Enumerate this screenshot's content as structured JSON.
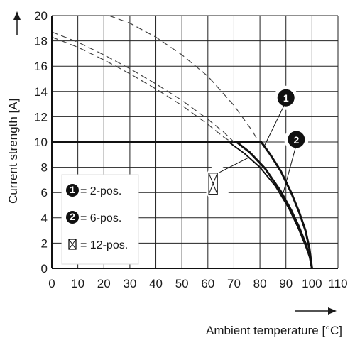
{
  "chart_data": {
    "type": "line",
    "xlabel": "Ambient temperature [°C]",
    "ylabel": "Current strength [A]",
    "xlim": [
      0,
      110
    ],
    "ylim": [
      0,
      20
    ],
    "xticks": [
      0,
      10,
      20,
      30,
      40,
      50,
      60,
      70,
      80,
      90,
      100,
      110
    ],
    "yticks": [
      0,
      2,
      4,
      6,
      8,
      10,
      12,
      14,
      16,
      18,
      20
    ],
    "grid": true,
    "series": [
      {
        "marker": "1",
        "style": "solid-bold",
        "points": [
          [
            0,
            10
          ],
          [
            80.5,
            10
          ],
          [
            84,
            9.0
          ],
          [
            88,
            7.7
          ],
          [
            92,
            6.0
          ],
          [
            95,
            4.5
          ],
          [
            97.5,
            3.0
          ],
          [
            99,
            1.6
          ],
          [
            100,
            0
          ]
        ]
      },
      {
        "marker": "2",
        "style": "solid-bold",
        "points": [
          [
            0,
            10
          ],
          [
            71,
            10
          ],
          [
            76,
            9.2
          ],
          [
            82,
            7.9
          ],
          [
            88,
            6.1
          ],
          [
            92,
            4.6
          ],
          [
            95,
            3.3
          ],
          [
            97.5,
            2.0
          ],
          [
            99.2,
            0.9
          ],
          [
            100,
            0
          ]
        ]
      },
      {
        "marker": "12",
        "style": "solid",
        "points": [
          [
            0,
            10
          ],
          [
            68,
            10
          ],
          [
            74,
            9.1
          ],
          [
            80,
            8.0
          ],
          [
            86,
            6.5
          ],
          [
            91,
            4.8
          ],
          [
            94.5,
            3.3
          ],
          [
            97.5,
            1.8
          ],
          [
            99.3,
            0.8
          ],
          [
            100,
            0
          ]
        ]
      },
      {
        "style": "dashed",
        "points": [
          [
            22,
            20
          ],
          [
            30,
            19.4
          ],
          [
            40,
            18.3
          ],
          [
            50,
            16.9
          ],
          [
            60,
            15.2
          ],
          [
            70,
            12.9
          ],
          [
            77,
            10.9
          ],
          [
            79,
            10.2
          ]
        ]
      },
      {
        "style": "dashed",
        "points": [
          [
            0,
            18.7
          ],
          [
            10,
            17.9
          ],
          [
            20,
            16.9
          ],
          [
            30,
            15.8
          ],
          [
            40,
            14.6
          ],
          [
            50,
            13.3
          ],
          [
            60,
            11.8
          ],
          [
            66,
            10.8
          ],
          [
            70,
            10.0
          ]
        ]
      },
      {
        "style": "dashed",
        "points": [
          [
            0,
            18.3
          ],
          [
            10,
            17.5
          ],
          [
            20,
            16.5
          ],
          [
            30,
            15.4
          ],
          [
            40,
            14.2
          ],
          [
            50,
            12.9
          ],
          [
            60,
            11.4
          ],
          [
            66,
            10.4
          ],
          [
            69,
            10.0
          ]
        ]
      }
    ],
    "legend": {
      "placement": "left-middle",
      "entries": [
        {
          "symbol": "1",
          "text": "= 2-pos."
        },
        {
          "symbol": "2",
          "text": "= 6-pos."
        },
        {
          "symbol": "box-x-icon",
          "text": "= 12-pos."
        }
      ]
    },
    "annotations": [
      {
        "symbol": "1",
        "at": [
          90,
          13.5
        ]
      },
      {
        "symbol": "2",
        "at": [
          94,
          10.2
        ]
      },
      {
        "symbol": "box-x-icon",
        "at": [
          62,
          6.7
        ]
      }
    ]
  }
}
